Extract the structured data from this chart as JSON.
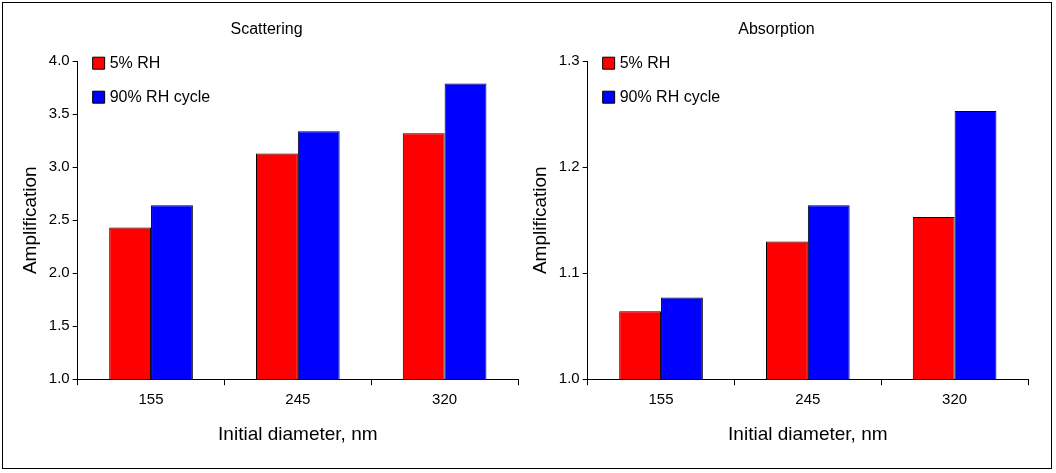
{
  "chart_data": [
    {
      "type": "bar",
      "title": "Scattering",
      "xlabel": "Initial diameter, nm",
      "ylabel": "Amplification",
      "categories": [
        "155",
        "245",
        "320"
      ],
      "series": [
        {
          "name": "5% RH",
          "color": "#ff0000",
          "values": [
            2.43,
            3.13,
            3.32
          ]
        },
        {
          "name": "90% RH cycle",
          "color": "#0000ff",
          "values": [
            2.64,
            3.34,
            3.79
          ]
        }
      ],
      "ylim": [
        1.0,
        4.0
      ],
      "yticks": [
        {
          "value": 1,
          "label": "1.0"
        },
        {
          "value": 1.5,
          "label": "1.5"
        },
        {
          "value": 2,
          "label": "2.0"
        },
        {
          "value": 2.5,
          "label": "2.5"
        },
        {
          "value": 3,
          "label": "3.0"
        },
        {
          "value": 3.5,
          "label": "3.5"
        },
        {
          "value": 4,
          "label": "4.0"
        }
      ],
      "grid": false,
      "legend": "top left"
    },
    {
      "type": "bar",
      "title": "Absorption",
      "xlabel": "Initial diameter, nm",
      "ylabel": "Amplification",
      "categories": [
        "155",
        "245",
        "320"
      ],
      "series": [
        {
          "name": "5% RH",
          "color": "#ff0000",
          "values": [
            1.064,
            1.13,
            1.153
          ]
        },
        {
          "name": "90% RH cycle",
          "color": "#0000ff",
          "values": [
            1.077,
            1.164,
            1.253
          ]
        }
      ],
      "ylim": [
        1.0,
        1.3
      ],
      "yticks": [
        {
          "value": 1,
          "label": "1.0"
        },
        {
          "value": 1.1,
          "label": "1.1"
        },
        {
          "value": 1.2,
          "label": "1.2"
        },
        {
          "value": 1.3,
          "label": "1.3"
        }
      ],
      "grid": false,
      "legend": "top left"
    }
  ]
}
